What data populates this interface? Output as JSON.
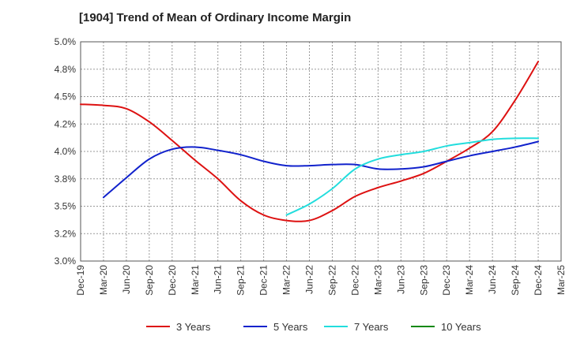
{
  "chart_data": {
    "type": "line",
    "title": "[1904]  Trend of Mean of Ordinary Income Margin",
    "xlabel": "",
    "ylabel": "",
    "x_ticks": [
      "Dec-19",
      "Mar-20",
      "Jun-20",
      "Sep-20",
      "Dec-20",
      "Mar-21",
      "Jun-21",
      "Sep-21",
      "Dec-21",
      "Mar-22",
      "Jun-22",
      "Sep-22",
      "Dec-22",
      "Mar-23",
      "Jun-23",
      "Sep-23",
      "Dec-23",
      "Mar-24",
      "Jun-24",
      "Sep-24",
      "Dec-24",
      "Mar-25"
    ],
    "y_ticks": [
      "3.0%",
      "3.2%",
      "3.5%",
      "3.8%",
      "4.0%",
      "4.2%",
      "4.5%",
      "4.8%",
      "5.0%"
    ],
    "ylim": [
      3.0,
      5.0
    ],
    "y_unit": "%",
    "grid": true,
    "legend_position": "bottom",
    "series": [
      {
        "name": "3 Years",
        "color": "#dd1111",
        "x": [
          "Dec-19",
          "Mar-20",
          "Jun-20",
          "Sep-20",
          "Dec-20",
          "Mar-21",
          "Jun-21",
          "Sep-21",
          "Dec-21",
          "Mar-22",
          "Jun-22",
          "Sep-22",
          "Dec-22",
          "Mar-23",
          "Jun-23",
          "Sep-23",
          "Dec-23",
          "Mar-24",
          "Jun-24",
          "Sep-24",
          "Dec-24"
        ],
        "values": [
          4.43,
          4.42,
          4.39,
          4.27,
          4.1,
          3.92,
          3.75,
          3.55,
          3.42,
          3.37,
          3.37,
          3.46,
          3.59,
          3.67,
          3.73,
          3.8,
          3.91,
          4.03,
          4.18,
          4.47,
          4.82
        ]
      },
      {
        "name": "5 Years",
        "color": "#1122cc",
        "x": [
          "Mar-20",
          "Jun-20",
          "Sep-20",
          "Dec-20",
          "Mar-21",
          "Jun-21",
          "Sep-21",
          "Dec-21",
          "Mar-22",
          "Jun-22",
          "Sep-22",
          "Dec-22",
          "Mar-23",
          "Jun-23",
          "Sep-23",
          "Dec-23",
          "Mar-24",
          "Jun-24",
          "Sep-24",
          "Dec-24"
        ],
        "values": [
          3.58,
          3.76,
          3.93,
          4.02,
          4.04,
          4.01,
          3.97,
          3.91,
          3.87,
          3.87,
          3.88,
          3.88,
          3.84,
          3.84,
          3.86,
          3.91,
          3.96,
          4.0,
          4.04,
          4.09
        ]
      },
      {
        "name": "7 Years",
        "color": "#22dddd",
        "x": [
          "Mar-22",
          "Jun-22",
          "Sep-22",
          "Dec-22",
          "Mar-23",
          "Jun-23",
          "Sep-23",
          "Dec-23",
          "Mar-24",
          "Jun-24",
          "Sep-24",
          "Dec-24"
        ],
        "values": [
          3.42,
          3.52,
          3.66,
          3.84,
          3.93,
          3.97,
          4.0,
          4.05,
          4.08,
          4.11,
          4.12,
          4.12
        ]
      },
      {
        "name": "10 Years",
        "color": "#118811",
        "x": [],
        "values": []
      }
    ]
  }
}
